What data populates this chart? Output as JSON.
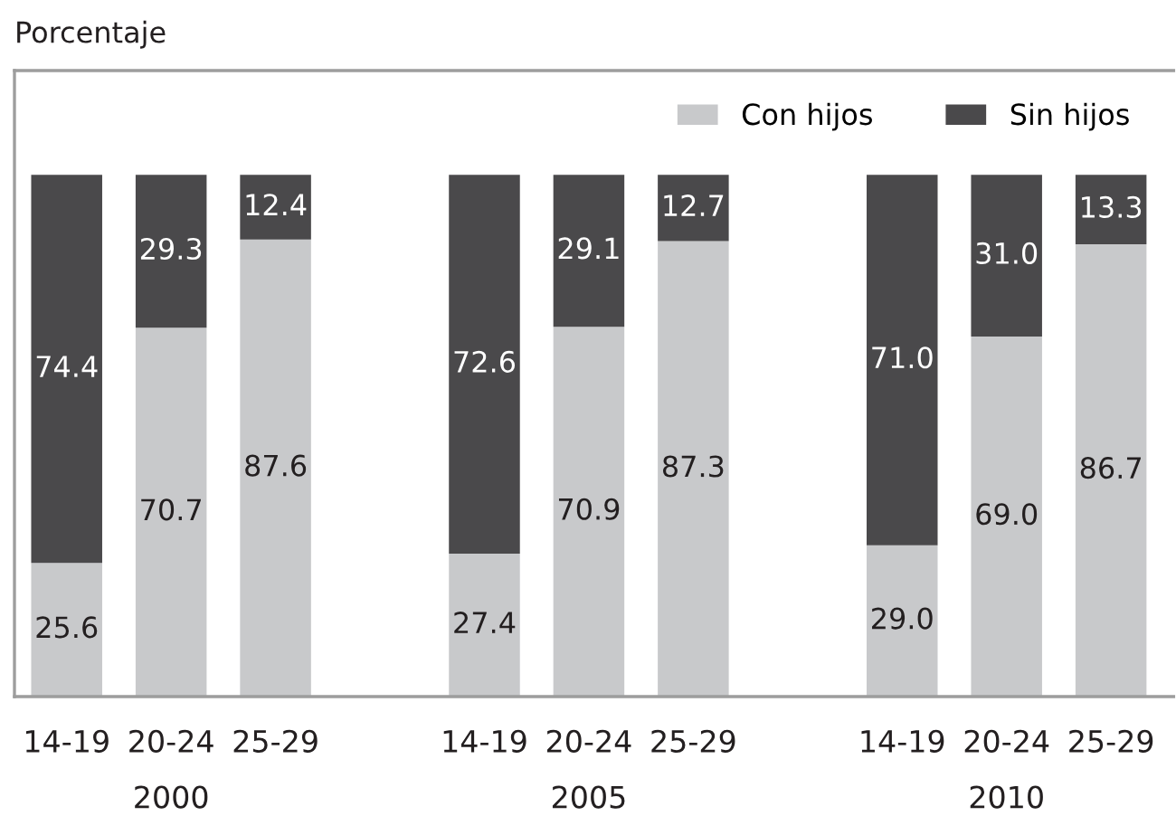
{
  "chart_data": {
    "type": "bar",
    "stacked": true,
    "ylabel": "Porcentaje",
    "categories": [
      "14-19",
      "20-24",
      "25-29",
      null,
      "14-19",
      "20-24",
      "25-29",
      null,
      "14-19",
      "20-24",
      "25-29"
    ],
    "series": [
      {
        "name": "Con hijos",
        "color": "#c8c9cb",
        "values": [
          25.6,
          70.7,
          87.6,
          null,
          27.4,
          70.9,
          87.3,
          null,
          29.0,
          69.0,
          86.7
        ],
        "value_labels": [
          "25.6",
          "70.7",
          "87.6",
          null,
          "27.4",
          "70.9",
          "87.3",
          null,
          "29.0",
          "69.0",
          "86.7"
        ]
      },
      {
        "name": "Sin hijos",
        "color": "#4a494b",
        "values": [
          74.4,
          29.3,
          12.4,
          null,
          72.6,
          29.1,
          12.7,
          null,
          71.0,
          31.0,
          13.3
        ],
        "value_labels": [
          "74.4",
          "29.3",
          "12.4",
          null,
          "72.6",
          "29.1",
          "12.7",
          null,
          "71.0",
          "31.0",
          "13.3"
        ]
      }
    ],
    "annotations": [
      "2000",
      "2005",
      "2010"
    ],
    "legend": "top right",
    "grid": false,
    "tick_labels": "x"
  }
}
